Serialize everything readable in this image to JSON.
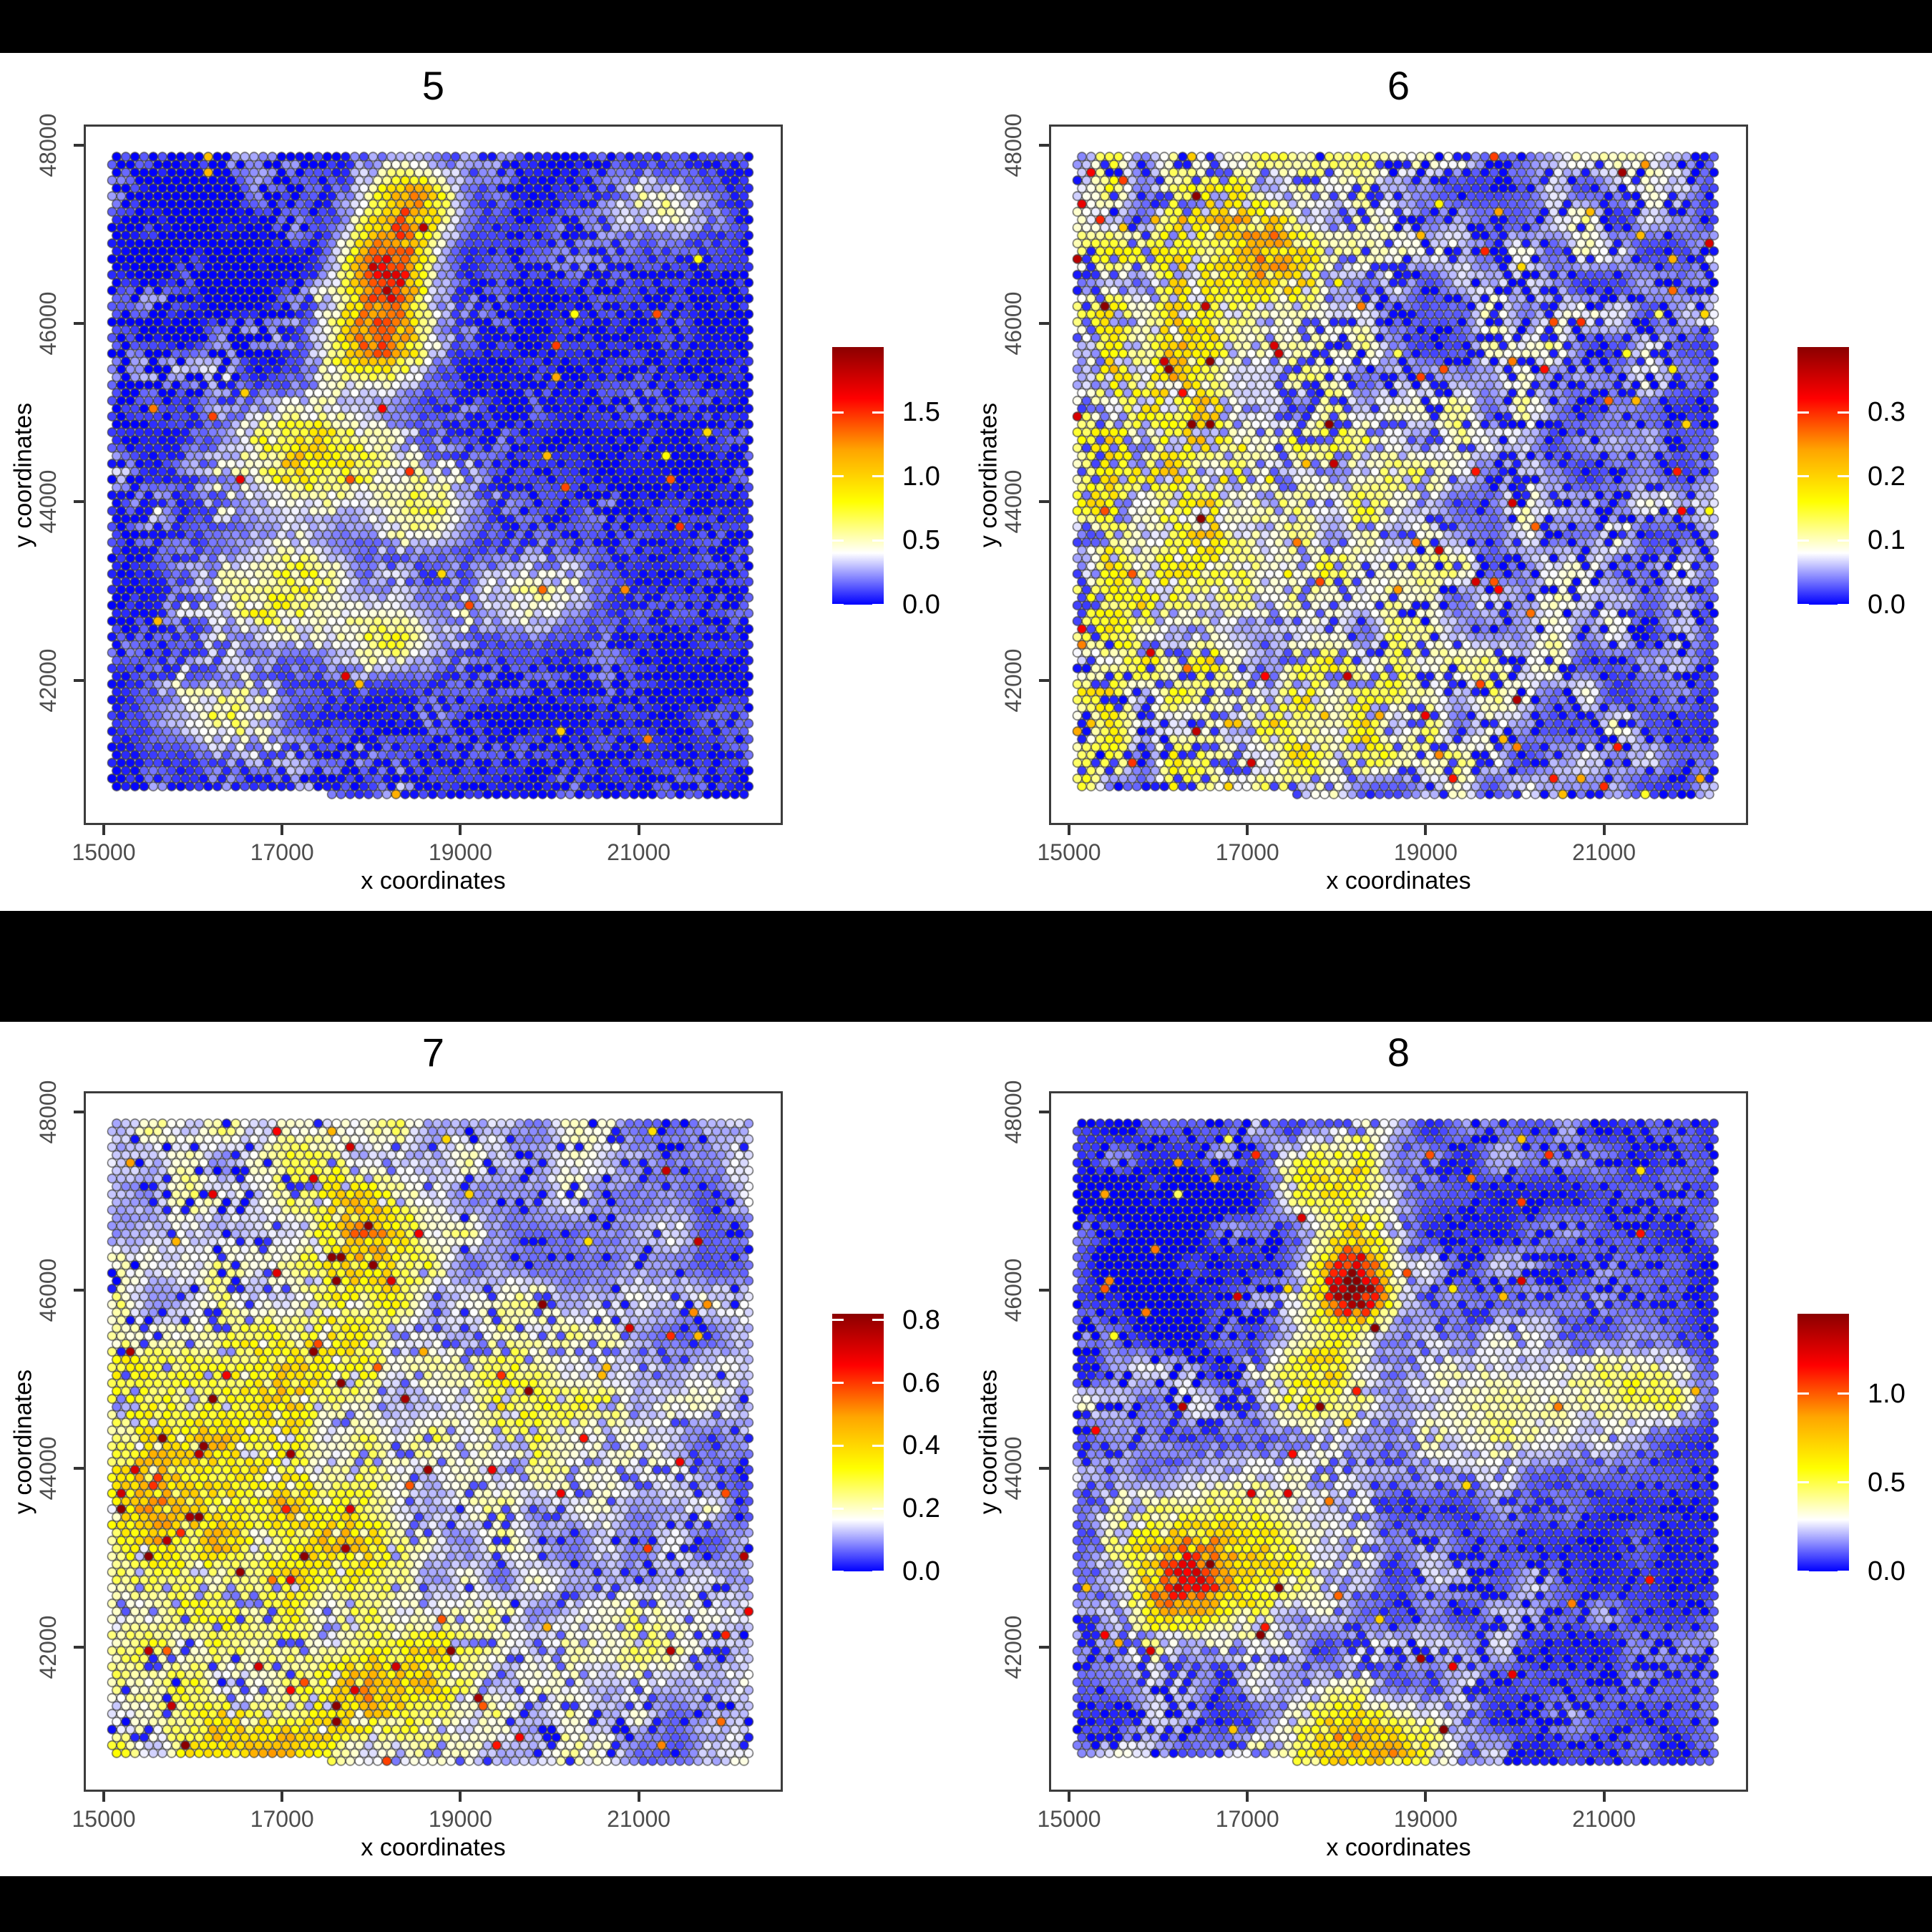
{
  "figure": {
    "background": "#000000",
    "band_background": "#ffffff"
  },
  "chart_data": {
    "type": "scatter",
    "subtype": "spatial-hex-grid-feature-plot",
    "xlabel": "x coordinates",
    "ylabel": "y coordinates",
    "x_tick_values": [
      15000,
      17000,
      19000,
      21000
    ],
    "x_tick_labels": [
      "15000",
      "17000",
      "19000",
      "21000"
    ],
    "y_tick_values": [
      48000,
      46000,
      44000,
      42000
    ],
    "y_tick_labels": [
      "48000",
      "46000",
      "44000",
      "42000"
    ],
    "xlim": [
      14775,
      22615
    ],
    "ylim": [
      40380,
      48233
    ],
    "grid_on": false,
    "legend_position": "right",
    "spot_grid": {
      "cols": 70,
      "rows": 82,
      "x_start_data": 15144,
      "y_start_data": 47872,
      "pitch_x_data": 102.7,
      "pitch_y_data": 88.3,
      "hex_offset": true,
      "bottom_row_starts_at_x_data": 17350
    },
    "palette": {
      "stops": [
        [
          0.0,
          "#0000FF"
        ],
        [
          0.2,
          "#FFFFFF"
        ],
        [
          0.4,
          "#FFFF00"
        ],
        [
          0.6,
          "#FFA500"
        ],
        [
          0.8,
          "#FF0000"
        ],
        [
          1.0,
          "#8B0000"
        ]
      ],
      "outline": "#3f3f3f"
    },
    "panels": [
      {
        "title": "5",
        "vmax": 2.01,
        "legend_ticks": [
          {
            "v": 1.5,
            "label": "1.5"
          },
          {
            "v": 1.0,
            "label": "1.0"
          },
          {
            "v": 0.5,
            "label": "0.5"
          },
          {
            "v": 0.0,
            "label": "0.0"
          }
        ],
        "pattern": {
          "seed": 11,
          "base": 0.02,
          "noise_amp": 0.38,
          "noise_cells": 20,
          "jitter": 0.3,
          "drop_p": 0.45,
          "x_gradient": [
            1.15,
            0.42
          ],
          "spike_p": 0.005,
          "spike_amp": [
            0.7,
            1.5
          ],
          "blobs": [
            [
              18450,
              47350,
              500,
              450,
              1.0
            ],
            [
              18150,
              46600,
              450,
              500,
              1.5
            ],
            [
              18050,
              45800,
              550,
              450,
              1.2
            ],
            [
              17350,
              44500,
              900,
              600,
              0.75
            ],
            [
              18600,
              43900,
              500,
              400,
              0.6
            ],
            [
              17000,
              43000,
              800,
              600,
              0.55
            ],
            [
              18200,
              42500,
              600,
              400,
              0.6
            ],
            [
              19800,
              42900,
              700,
              400,
              0.4
            ],
            [
              16300,
              41600,
              700,
              400,
              0.45
            ],
            [
              21300,
              47300,
              500,
              350,
              0.45
            ],
            [
              15800,
              46800,
              1200,
              1200,
              -0.2
            ]
          ]
        }
      },
      {
        "title": "6",
        "vmax": 0.402,
        "legend_ticks": [
          {
            "v": 0.3,
            "label": "0.3"
          },
          {
            "v": 0.2,
            "label": "0.2"
          },
          {
            "v": 0.1,
            "label": "0.1"
          },
          {
            "v": 0.0,
            "label": "0.0"
          }
        ],
        "pattern": {
          "seed": 23,
          "base": 0.02,
          "noise_amp": 0.13,
          "noise_cells": 22,
          "jitter": 0.35,
          "drop_p": 0.22,
          "x_gradient": [
            1.25,
            0.6
          ],
          "spike_p": 0.02,
          "spike_amp": [
            0.12,
            0.3
          ],
          "blobs": [
            [
              17100,
              46800,
              700,
              600,
              0.16
            ],
            [
              16200,
              45500,
              900,
              900,
              0.08
            ],
            [
              16500,
              43400,
              1100,
              900,
              0.09
            ],
            [
              18500,
              44300,
              700,
              500,
              0.06
            ],
            [
              17800,
              41500,
              900,
              600,
              0.07
            ]
          ]
        }
      },
      {
        "title": "7",
        "vmax": 0.82,
        "legend_ticks": [
          {
            "v": 0.8,
            "label": "0.8"
          },
          {
            "v": 0.6,
            "label": "0.6"
          },
          {
            "v": 0.4,
            "label": "0.4"
          },
          {
            "v": 0.2,
            "label": "0.2"
          },
          {
            "v": 0.0,
            "label": "0.0"
          }
        ],
        "pattern": {
          "seed": 37,
          "base": 0.08,
          "noise_amp": 0.2,
          "noise_cells": 20,
          "jitter": 0.4,
          "drop_p": 0.12,
          "x_gradient": [
            1.2,
            0.55
          ],
          "spike_p": 0.014,
          "spike_amp": [
            0.25,
            0.7
          ],
          "blobs": [
            [
              17900,
              46400,
              600,
              800,
              0.3
            ],
            [
              17100,
              45100,
              700,
              500,
              0.22
            ],
            [
              15900,
              43700,
              1300,
              1000,
              0.26
            ],
            [
              17600,
              43300,
              700,
              600,
              0.2
            ],
            [
              18300,
              41600,
              800,
              700,
              0.3
            ],
            [
              16800,
              40900,
              700,
              400,
              0.3
            ],
            [
              19900,
              44600,
              1400,
              900,
              0.12
            ],
            [
              20700,
              42000,
              800,
              500,
              0.1
            ]
          ]
        }
      },
      {
        "title": "8",
        "vmax": 1.45,
        "legend_ticks": [
          {
            "v": 1.0,
            "label": "1.0"
          },
          {
            "v": 0.5,
            "label": "0.5"
          },
          {
            "v": 0.0,
            "label": "0.0"
          }
        ],
        "pattern": {
          "seed": 51,
          "base": 0.03,
          "noise_amp": 0.3,
          "noise_cells": 20,
          "jitter": 0.35,
          "drop_p": 0.25,
          "x_gradient": [
            1.1,
            0.55
          ],
          "spike_p": 0.011,
          "spike_amp": [
            0.5,
            1.2
          ],
          "blobs": [
            [
              18200,
              46100,
              420,
              480,
              1.3
            ],
            [
              18000,
              47200,
              600,
              500,
              0.55
            ],
            [
              17800,
              45100,
              500,
              600,
              0.5
            ],
            [
              16800,
              43100,
              1100,
              800,
              0.6
            ],
            [
              16300,
              42600,
              500,
              400,
              0.7
            ],
            [
              18300,
              40900,
              800,
              500,
              0.75
            ],
            [
              19900,
              44700,
              1200,
              700,
              0.35
            ],
            [
              21500,
              44900,
              600,
              400,
              0.4
            ],
            [
              15900,
              46600,
              1100,
              1100,
              -0.25
            ]
          ]
        }
      }
    ]
  }
}
